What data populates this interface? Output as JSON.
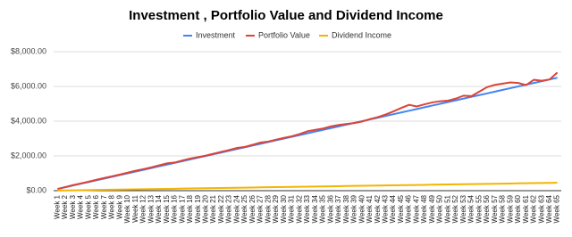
{
  "chart_data": {
    "type": "line",
    "title": "Investment , Portfolio Value and Dividend Income",
    "categories": [
      "Week 1",
      "Week 2",
      "Week 3",
      "Week 4",
      "Week 5",
      "Week 6",
      "Week 7",
      "Week 8",
      "Week 9",
      "Week 10",
      "Week 11",
      "Week 12",
      "Week 13",
      "Week 14",
      "Week 15",
      "Week 16",
      "Week 17",
      "Week 18",
      "Week 19",
      "Week 20",
      "Week 21",
      "Week 22",
      "Week 23",
      "Week 24",
      "Week 25",
      "Week 26",
      "Week 27",
      "Week 28",
      "Week 29",
      "Week 30",
      "Week 31",
      "Week 32",
      "Week 33",
      "Week 34",
      "Week 35",
      "Week 36",
      "Week 37",
      "Week 38",
      "Week 39",
      "Week 40",
      "Week 41",
      "Week 42",
      "Week 43",
      "Week 44",
      "Week 45",
      "Week 46",
      "Week 47",
      "Week 48",
      "Week 49",
      "Week 50",
      "Week 51",
      "Week 52",
      "Week 53",
      "Week 54",
      "Week 55",
      "Week 56",
      "Week 57",
      "Week 58",
      "Week 59",
      "Week 60",
      "Week 61",
      "Week 62",
      "Week 63",
      "Week 64",
      "Week 65"
    ],
    "series": [
      {
        "name": "Investment",
        "color": "#4285f4",
        "values": [
          100,
          200,
          300,
          400,
          500,
          600,
          700,
          800,
          900,
          1000,
          1100,
          1200,
          1300,
          1400,
          1500,
          1600,
          1700,
          1800,
          1900,
          2000,
          2100,
          2200,
          2300,
          2400,
          2500,
          2600,
          2700,
          2800,
          2900,
          3000,
          3100,
          3200,
          3300,
          3400,
          3500,
          3600,
          3700,
          3800,
          3900,
          4000,
          4100,
          4200,
          4300,
          4400,
          4500,
          4600,
          4700,
          4800,
          4900,
          5000,
          5100,
          5200,
          5300,
          5400,
          5500,
          5600,
          5700,
          5800,
          5900,
          6000,
          6100,
          6200,
          6300,
          6400,
          6500
        ]
      },
      {
        "name": "Portfolio Value",
        "color": "#db4437",
        "values": [
          100,
          210,
          320,
          420,
          520,
          630,
          730,
          830,
          930,
          1040,
          1150,
          1240,
          1340,
          1460,
          1570,
          1620,
          1740,
          1850,
          1930,
          2020,
          2130,
          2240,
          2340,
          2460,
          2520,
          2640,
          2770,
          2830,
          2940,
          3040,
          3130,
          3260,
          3420,
          3500,
          3580,
          3700,
          3780,
          3840,
          3890,
          3980,
          4120,
          4230,
          4380,
          4560,
          4760,
          4940,
          4850,
          4970,
          5080,
          5150,
          5180,
          5300,
          5470,
          5440,
          5700,
          5960,
          6090,
          6160,
          6230,
          6200,
          6080,
          6380,
          6330,
          6400,
          6800
        ]
      },
      {
        "name": "Dividend Income",
        "color": "#f4b400",
        "values": [
          7,
          14,
          21,
          28,
          35,
          42,
          49,
          56,
          63,
          70,
          77,
          84,
          91,
          98,
          105,
          112,
          119,
          126,
          133,
          140,
          147,
          154,
          161,
          168,
          175,
          182,
          189,
          196,
          203,
          210,
          217,
          224,
          231,
          238,
          245,
          252,
          259,
          266,
          273,
          280,
          287,
          294,
          301,
          308,
          315,
          322,
          329,
          336,
          343,
          350,
          357,
          364,
          371,
          378,
          385,
          392,
          399,
          406,
          413,
          420,
          427,
          434,
          441,
          448,
          455
        ]
      }
    ],
    "ylim": [
      0,
      8000
    ],
    "yticks": [
      {
        "value": 0,
        "label": "$0.00"
      },
      {
        "value": 2000,
        "label": "$2,000.00"
      },
      {
        "value": 4000,
        "label": "$4,000.00"
      },
      {
        "value": 6000,
        "label": "$6,000.00"
      },
      {
        "value": 8000,
        "label": "$8,000.00"
      }
    ],
    "grid": true,
    "legend": "top"
  }
}
